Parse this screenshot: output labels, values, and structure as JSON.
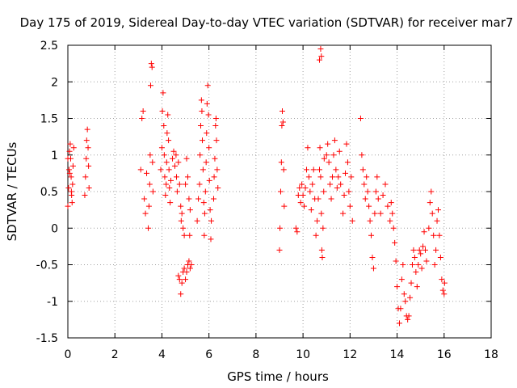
{
  "chart_data": {
    "type": "scatter",
    "title": "Day 175 of 2019, Sidereal Day-to-day VTEC variation (SDTVAR) for receiver mar7",
    "xlabel": "GPS time / hours",
    "ylabel": "SDTVAR / TECUs",
    "xlim": [
      0,
      18
    ],
    "ylim": [
      -1.5,
      2.5
    ],
    "xticks": [
      0,
      2,
      4,
      6,
      8,
      10,
      12,
      14,
      16,
      18
    ],
    "yticks": [
      -1.5,
      -1,
      -0.5,
      0,
      0.5,
      1,
      1.5,
      2,
      2.5
    ],
    "xtick_labels": [
      "0",
      "2",
      "4",
      "6",
      "8",
      "10",
      "12",
      "14",
      "16",
      "18"
    ],
    "ytick_labels": [
      "-1.5",
      "-1",
      "-0.5",
      "0",
      "0.5",
      "1",
      "1.5",
      "2",
      "2.5"
    ],
    "grid": true,
    "marker": "+",
    "color": "#ff0000",
    "series": [
      {
        "name": "SDTVAR",
        "points": [
          [
            0.0,
            0.3
          ],
          [
            0.03,
            0.55
          ],
          [
            0.05,
            0.8
          ],
          [
            0.07,
            1.05
          ],
          [
            0.1,
            1.15
          ],
          [
            0.12,
            0.95
          ],
          [
            0.14,
            0.7
          ],
          [
            0.16,
            0.45
          ],
          [
            0.18,
            0.35
          ],
          [
            0.2,
            0.6
          ],
          [
            0.22,
            0.85
          ],
          [
            0.25,
            1.1
          ],
          [
            0.0,
            0.95
          ],
          [
            0.08,
            0.75
          ],
          [
            0.15,
            0.5
          ],
          [
            0.72,
            0.45
          ],
          [
            0.75,
            0.7
          ],
          [
            0.78,
            0.95
          ],
          [
            0.8,
            1.2
          ],
          [
            0.83,
            1.35
          ],
          [
            0.86,
            1.1
          ],
          [
            0.88,
            0.85
          ],
          [
            0.9,
            0.55
          ],
          [
            3.1,
            0.8
          ],
          [
            3.15,
            1.5
          ],
          [
            3.2,
            1.6
          ],
          [
            3.25,
            0.4
          ],
          [
            3.3,
            0.2
          ],
          [
            3.35,
            0.75
          ],
          [
            3.42,
            0.0
          ],
          [
            3.45,
            0.3
          ],
          [
            3.48,
            0.6
          ],
          [
            3.5,
            1.0
          ],
          [
            3.52,
            1.95
          ],
          [
            3.55,
            2.25
          ],
          [
            3.58,
            2.2
          ],
          [
            3.6,
            0.9
          ],
          [
            3.62,
            0.5
          ],
          [
            3.95,
            0.8
          ],
          [
            4.0,
            1.1
          ],
          [
            4.02,
            1.6
          ],
          [
            4.05,
            1.85
          ],
          [
            4.08,
            1.4
          ],
          [
            4.1,
            1.0
          ],
          [
            4.12,
            0.7
          ],
          [
            4.15,
            0.45
          ],
          [
            4.18,
            0.6
          ],
          [
            4.2,
            0.9
          ],
          [
            4.22,
            1.3
          ],
          [
            4.25,
            1.55
          ],
          [
            4.28,
            1.2
          ],
          [
            4.3,
            0.8
          ],
          [
            4.32,
            0.55
          ],
          [
            4.35,
            0.35
          ],
          [
            4.38,
            0.65
          ],
          [
            4.45,
            0.95
          ],
          [
            4.5,
            1.05
          ],
          [
            4.55,
            0.85
          ],
          [
            4.6,
            1.0
          ],
          [
            4.62,
            0.7
          ],
          [
            4.65,
            0.5
          ],
          [
            4.7,
            0.9
          ],
          [
            4.75,
            0.6
          ],
          [
            4.8,
            0.3
          ],
          [
            4.82,
            0.1
          ],
          [
            4.85,
            0.2
          ],
          [
            4.9,
            0.0
          ],
          [
            4.95,
            -0.1
          ],
          [
            5.0,
            0.6
          ],
          [
            5.05,
            0.95
          ],
          [
            5.1,
            0.7
          ],
          [
            5.15,
            0.4
          ],
          [
            5.18,
            -0.1
          ],
          [
            5.2,
            0.25
          ],
          [
            4.7,
            -0.65
          ],
          [
            4.75,
            -0.7
          ],
          [
            4.8,
            -0.9
          ],
          [
            4.85,
            -0.75
          ],
          [
            4.9,
            -0.6
          ],
          [
            4.95,
            -0.55
          ],
          [
            5.0,
            -0.7
          ],
          [
            5.05,
            -0.6
          ],
          [
            5.1,
            -0.5
          ],
          [
            5.15,
            -0.45
          ],
          [
            5.2,
            -0.55
          ],
          [
            5.25,
            -0.5
          ],
          [
            5.5,
            0.1
          ],
          [
            5.55,
            0.4
          ],
          [
            5.6,
            0.6
          ],
          [
            5.62,
            1.0
          ],
          [
            5.65,
            1.4
          ],
          [
            5.68,
            1.75
          ],
          [
            5.7,
            1.6
          ],
          [
            5.72,
            1.2
          ],
          [
            5.75,
            0.8
          ],
          [
            5.78,
            0.35
          ],
          [
            5.8,
            -0.1
          ],
          [
            5.82,
            0.2
          ],
          [
            5.85,
            0.5
          ],
          [
            5.88,
            0.9
          ],
          [
            5.9,
            1.3
          ],
          [
            5.92,
            1.7
          ],
          [
            5.95,
            1.95
          ],
          [
            5.98,
            1.55
          ],
          [
            6.0,
            1.1
          ],
          [
            6.02,
            0.65
          ],
          [
            6.05,
            0.25
          ],
          [
            6.08,
            -0.15
          ],
          [
            6.1,
            0.1
          ],
          [
            6.2,
            0.4
          ],
          [
            6.22,
            0.7
          ],
          [
            6.25,
            0.95
          ],
          [
            6.28,
            1.4
          ],
          [
            6.3,
            1.5
          ],
          [
            6.32,
            1.2
          ],
          [
            6.35,
            0.8
          ],
          [
            6.38,
            0.55
          ],
          [
            9.0,
            -0.3
          ],
          [
            9.02,
            0.0
          ],
          [
            9.05,
            0.5
          ],
          [
            9.08,
            0.9
          ],
          [
            9.1,
            1.4
          ],
          [
            9.12,
            1.6
          ],
          [
            9.15,
            1.45
          ],
          [
            9.18,
            0.8
          ],
          [
            9.2,
            0.3
          ],
          [
            9.7,
            0.0
          ],
          [
            9.75,
            -0.05
          ],
          [
            9.8,
            0.45
          ],
          [
            9.85,
            0.55
          ],
          [
            9.9,
            0.35
          ],
          [
            9.95,
            0.6
          ],
          [
            10.0,
            0.45
          ],
          [
            10.05,
            0.3
          ],
          [
            10.1,
            0.55
          ],
          [
            10.15,
            0.8
          ],
          [
            10.2,
            1.1
          ],
          [
            10.25,
            0.7
          ],
          [
            10.3,
            0.5
          ],
          [
            10.35,
            0.25
          ],
          [
            10.4,
            0.6
          ],
          [
            10.45,
            0.8
          ],
          [
            10.5,
            0.4
          ],
          [
            10.55,
            -0.1
          ],
          [
            10.6,
            0.1
          ],
          [
            10.65,
            0.4
          ],
          [
            10.7,
            0.8
          ],
          [
            10.72,
            1.1
          ],
          [
            10.75,
            0.7
          ],
          [
            10.78,
            0.2
          ],
          [
            10.8,
            -0.3
          ],
          [
            10.82,
            -0.4
          ],
          [
            10.85,
            0.0
          ],
          [
            10.88,
            0.5
          ],
          [
            10.9,
            0.95
          ],
          [
            10.7,
            2.3
          ],
          [
            10.75,
            2.45
          ],
          [
            10.78,
            2.35
          ],
          [
            11.0,
            1.0
          ],
          [
            11.05,
            1.15
          ],
          [
            11.1,
            0.9
          ],
          [
            11.15,
            0.6
          ],
          [
            11.2,
            0.4
          ],
          [
            11.25,
            0.7
          ],
          [
            11.3,
            1.0
          ],
          [
            11.35,
            1.2
          ],
          [
            11.4,
            0.8
          ],
          [
            11.45,
            0.55
          ],
          [
            11.5,
            0.7
          ],
          [
            11.55,
            1.05
          ],
          [
            11.6,
            0.6
          ],
          [
            11.7,
            0.2
          ],
          [
            11.75,
            0.45
          ],
          [
            11.8,
            0.75
          ],
          [
            11.85,
            1.15
          ],
          [
            11.9,
            0.9
          ],
          [
            11.95,
            0.5
          ],
          [
            12.0,
            0.3
          ],
          [
            12.05,
            0.7
          ],
          [
            12.1,
            0.1
          ],
          [
            12.45,
            1.5
          ],
          [
            12.5,
            1.0
          ],
          [
            12.55,
            0.8
          ],
          [
            12.6,
            0.6
          ],
          [
            12.65,
            0.4
          ],
          [
            12.7,
            0.7
          ],
          [
            12.75,
            0.5
          ],
          [
            12.8,
            0.3
          ],
          [
            12.85,
            0.1
          ],
          [
            12.9,
            -0.1
          ],
          [
            12.95,
            -0.4
          ],
          [
            13.0,
            -0.55
          ],
          [
            13.05,
            0.2
          ],
          [
            13.1,
            0.5
          ],
          [
            13.15,
            0.7
          ],
          [
            13.2,
            0.4
          ],
          [
            13.3,
            0.2
          ],
          [
            13.4,
            0.45
          ],
          [
            13.5,
            0.6
          ],
          [
            13.6,
            0.3
          ],
          [
            13.7,
            0.1
          ],
          [
            13.75,
            0.35
          ],
          [
            13.8,
            0.2
          ],
          [
            13.85,
            0.0
          ],
          [
            13.9,
            -0.2
          ],
          [
            13.95,
            -0.45
          ],
          [
            14.0,
            -0.8
          ],
          [
            14.05,
            -1.1
          ],
          [
            14.1,
            -1.3
          ],
          [
            14.15,
            -1.1
          ],
          [
            14.2,
            -0.7
          ],
          [
            14.25,
            -0.5
          ],
          [
            14.3,
            -0.9
          ],
          [
            14.35,
            -1.0
          ],
          [
            14.4,
            -1.2
          ],
          [
            14.45,
            -1.25
          ],
          [
            14.5,
            -1.2
          ],
          [
            14.55,
            -0.95
          ],
          [
            14.6,
            -0.75
          ],
          [
            14.65,
            -0.5
          ],
          [
            14.7,
            -0.3
          ],
          [
            14.75,
            -0.4
          ],
          [
            14.8,
            -0.6
          ],
          [
            14.85,
            -0.8
          ],
          [
            14.9,
            -0.5
          ],
          [
            14.95,
            -0.3
          ],
          [
            15.0,
            -0.35
          ],
          [
            15.05,
            -0.55
          ],
          [
            15.1,
            -0.25
          ],
          [
            15.15,
            -0.05
          ],
          [
            15.2,
            -0.3
          ],
          [
            15.25,
            -0.45
          ],
          [
            15.35,
            0.0
          ],
          [
            15.4,
            0.35
          ],
          [
            15.45,
            0.5
          ],
          [
            15.5,
            0.2
          ],
          [
            15.55,
            -0.1
          ],
          [
            15.6,
            -0.5
          ],
          [
            15.65,
            -0.3
          ],
          [
            15.7,
            0.1
          ],
          [
            15.75,
            0.25
          ],
          [
            15.8,
            -0.1
          ],
          [
            15.85,
            -0.4
          ],
          [
            15.9,
            -0.7
          ],
          [
            15.95,
            -0.85
          ],
          [
            16.0,
            -0.9
          ],
          [
            16.02,
            -0.75
          ]
        ]
      }
    ]
  }
}
